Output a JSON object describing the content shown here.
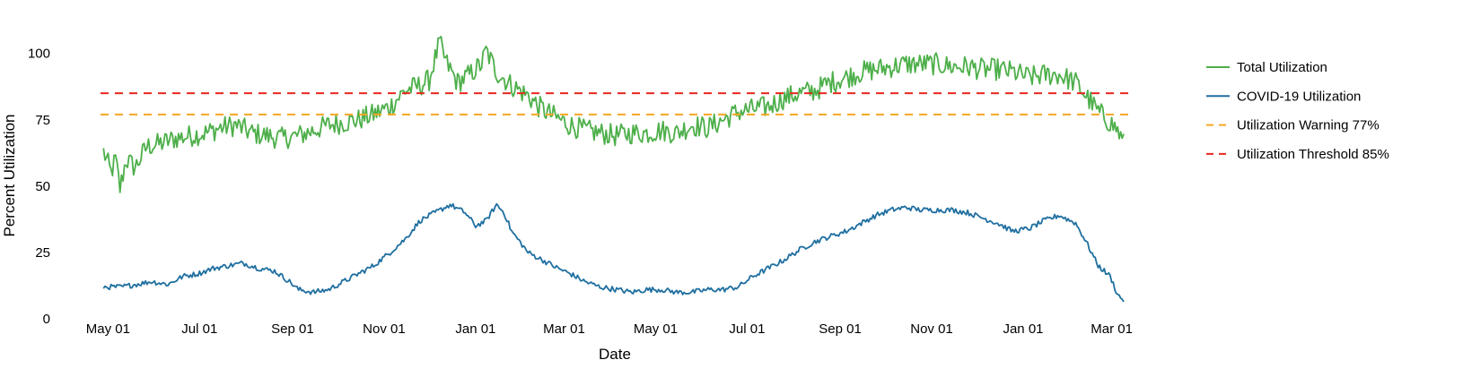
{
  "chart_data": {
    "type": "line",
    "xlabel": "Date",
    "ylabel": "Percent Utilization",
    "x_range": [
      "2020-04-26",
      "2022-03-12"
    ],
    "ylim": [
      0,
      108
    ],
    "y_ticks": [
      0,
      25,
      50,
      75,
      100
    ],
    "x_ticks": [
      {
        "date": "2020-05-01",
        "label": "May 01"
      },
      {
        "date": "2020-07-01",
        "label": "Jul 01"
      },
      {
        "date": "2020-09-01",
        "label": "Sep 01"
      },
      {
        "date": "2020-11-01",
        "label": "Nov 01"
      },
      {
        "date": "2021-01-01",
        "label": "Jan 01"
      },
      {
        "date": "2021-03-01",
        "label": "Mar 01"
      },
      {
        "date": "2021-05-01",
        "label": "May 01"
      },
      {
        "date": "2021-07-01",
        "label": "Jul 01"
      },
      {
        "date": "2021-09-01",
        "label": "Sep 01"
      },
      {
        "date": "2021-11-01",
        "label": "Nov 01"
      },
      {
        "date": "2022-01-01",
        "label": "Jan 01"
      },
      {
        "date": "2022-03-01",
        "label": "Mar 01"
      }
    ],
    "grid": false,
    "legend_position": "right",
    "series": [
      {
        "name": "Total Utilization",
        "color": "#4daf4a",
        "style": "solid",
        "points": [
          [
            "2020-04-28",
            63
          ],
          [
            "2020-05-03",
            55
          ],
          [
            "2020-05-06",
            60
          ],
          [
            "2020-05-09",
            49
          ],
          [
            "2020-05-13",
            60
          ],
          [
            "2020-05-19",
            57
          ],
          [
            "2020-05-27",
            65
          ],
          [
            "2020-06-05",
            66
          ],
          [
            "2020-06-15",
            68
          ],
          [
            "2020-06-25",
            69
          ],
          [
            "2020-07-05",
            70
          ],
          [
            "2020-07-15",
            72
          ],
          [
            "2020-07-25",
            73
          ],
          [
            "2020-08-05",
            70
          ],
          [
            "2020-08-15",
            69
          ],
          [
            "2020-08-25",
            68
          ],
          [
            "2020-09-05",
            69
          ],
          [
            "2020-09-15",
            71
          ],
          [
            "2020-09-25",
            73
          ],
          [
            "2020-10-05",
            74
          ],
          [
            "2020-10-15",
            75
          ],
          [
            "2020-10-25",
            77
          ],
          [
            "2020-11-05",
            80
          ],
          [
            "2020-11-15",
            86
          ],
          [
            "2020-11-25",
            88
          ],
          [
            "2020-12-01",
            90
          ],
          [
            "2020-12-05",
            98
          ],
          [
            "2020-12-08",
            104
          ],
          [
            "2020-12-12",
            97
          ],
          [
            "2020-12-20",
            89
          ],
          [
            "2020-12-28",
            92
          ],
          [
            "2021-01-05",
            96
          ],
          [
            "2021-01-08",
            101
          ],
          [
            "2021-01-15",
            93
          ],
          [
            "2021-01-25",
            88
          ],
          [
            "2021-02-05",
            84
          ],
          [
            "2021-02-12",
            80
          ],
          [
            "2021-02-20",
            77
          ],
          [
            "2021-03-05",
            73
          ],
          [
            "2021-03-15",
            71
          ],
          [
            "2021-03-25",
            70
          ],
          [
            "2021-04-05",
            69
          ],
          [
            "2021-04-15",
            70
          ],
          [
            "2021-04-25",
            70
          ],
          [
            "2021-05-05",
            71
          ],
          [
            "2021-05-15",
            70
          ],
          [
            "2021-05-25",
            73
          ],
          [
            "2021-06-05",
            72
          ],
          [
            "2021-06-15",
            75
          ],
          [
            "2021-06-25",
            78
          ],
          [
            "2021-07-05",
            79
          ],
          [
            "2021-07-15",
            80
          ],
          [
            "2021-07-25",
            83
          ],
          [
            "2021-08-05",
            85
          ],
          [
            "2021-08-15",
            86
          ],
          [
            "2021-08-25",
            89
          ],
          [
            "2021-09-05",
            91
          ],
          [
            "2021-09-15",
            93
          ],
          [
            "2021-09-25",
            94
          ],
          [
            "2021-10-05",
            95
          ],
          [
            "2021-10-15",
            96
          ],
          [
            "2021-10-25",
            96
          ],
          [
            "2021-11-05",
            96
          ],
          [
            "2021-11-15",
            95
          ],
          [
            "2021-11-25",
            95
          ],
          [
            "2021-12-05",
            94
          ],
          [
            "2021-12-15",
            94
          ],
          [
            "2021-12-25",
            93
          ],
          [
            "2022-01-05",
            91
          ],
          [
            "2022-01-15",
            92
          ],
          [
            "2022-01-25",
            92
          ],
          [
            "2022-02-05",
            89
          ],
          [
            "2022-02-12",
            84
          ],
          [
            "2022-02-20",
            78
          ],
          [
            "2022-02-28",
            74
          ],
          [
            "2022-03-05",
            71
          ],
          [
            "2022-03-09",
            66
          ]
        ]
      },
      {
        "name": "COVID-19 Utilization",
        "color": "#1f6fa0",
        "style": "solid",
        "points": [
          [
            "2020-04-28",
            12
          ],
          [
            "2020-05-10",
            12
          ],
          [
            "2020-05-20",
            13
          ],
          [
            "2020-05-30",
            14
          ],
          [
            "2020-06-10",
            13
          ],
          [
            "2020-06-20",
            16
          ],
          [
            "2020-06-30",
            17
          ],
          [
            "2020-07-10",
            19
          ],
          [
            "2020-07-20",
            20
          ],
          [
            "2020-07-30",
            21
          ],
          [
            "2020-08-10",
            19
          ],
          [
            "2020-08-20",
            18
          ],
          [
            "2020-08-30",
            14
          ],
          [
            "2020-09-05",
            11
          ],
          [
            "2020-09-15",
            10
          ],
          [
            "2020-09-25",
            11
          ],
          [
            "2020-10-05",
            14
          ],
          [
            "2020-10-15",
            17
          ],
          [
            "2020-10-25",
            20
          ],
          [
            "2020-11-05",
            25
          ],
          [
            "2020-11-15",
            30
          ],
          [
            "2020-11-25",
            37
          ],
          [
            "2020-12-05",
            40
          ],
          [
            "2020-12-15",
            43
          ],
          [
            "2020-12-25",
            40
          ],
          [
            "2021-01-01",
            35
          ],
          [
            "2021-01-08",
            37
          ],
          [
            "2021-01-15",
            43
          ],
          [
            "2021-01-20",
            40
          ],
          [
            "2021-01-25",
            33
          ],
          [
            "2021-02-05",
            25
          ],
          [
            "2021-02-15",
            22
          ],
          [
            "2021-02-25",
            19
          ],
          [
            "2021-03-05",
            17
          ],
          [
            "2021-03-15",
            14
          ],
          [
            "2021-03-25",
            12
          ],
          [
            "2021-04-05",
            11
          ],
          [
            "2021-04-15",
            10
          ],
          [
            "2021-04-25",
            11
          ],
          [
            "2021-05-05",
            11
          ],
          [
            "2021-05-15",
            10
          ],
          [
            "2021-05-25",
            10
          ],
          [
            "2021-06-05",
            11
          ],
          [
            "2021-06-15",
            11
          ],
          [
            "2021-06-25",
            12
          ],
          [
            "2021-07-05",
            16
          ],
          [
            "2021-07-15",
            19
          ],
          [
            "2021-07-25",
            22
          ],
          [
            "2021-08-05",
            26
          ],
          [
            "2021-08-15",
            29
          ],
          [
            "2021-08-25",
            31
          ],
          [
            "2021-09-05",
            33
          ],
          [
            "2021-09-15",
            36
          ],
          [
            "2021-09-25",
            39
          ],
          [
            "2021-10-05",
            41
          ],
          [
            "2021-10-15",
            42
          ],
          [
            "2021-10-25",
            41
          ],
          [
            "2021-11-05",
            41
          ],
          [
            "2021-11-15",
            41
          ],
          [
            "2021-11-25",
            40
          ],
          [
            "2021-12-05",
            38
          ],
          [
            "2021-12-15",
            36
          ],
          [
            "2021-12-25",
            33
          ],
          [
            "2022-01-05",
            34
          ],
          [
            "2022-01-15",
            37
          ],
          [
            "2022-01-25",
            39
          ],
          [
            "2022-02-05",
            36
          ],
          [
            "2022-02-12",
            29
          ],
          [
            "2022-02-20",
            20
          ],
          [
            "2022-02-28",
            16
          ],
          [
            "2022-03-05",
            9
          ],
          [
            "2022-03-09",
            7
          ]
        ]
      },
      {
        "name": "Utilization Warning 77%",
        "color": "#f5a623",
        "style": "dashed",
        "constant": 77
      },
      {
        "name": "Utilization Threshold 85%",
        "color": "#e8281f",
        "style": "dashed",
        "constant": 85
      }
    ]
  }
}
